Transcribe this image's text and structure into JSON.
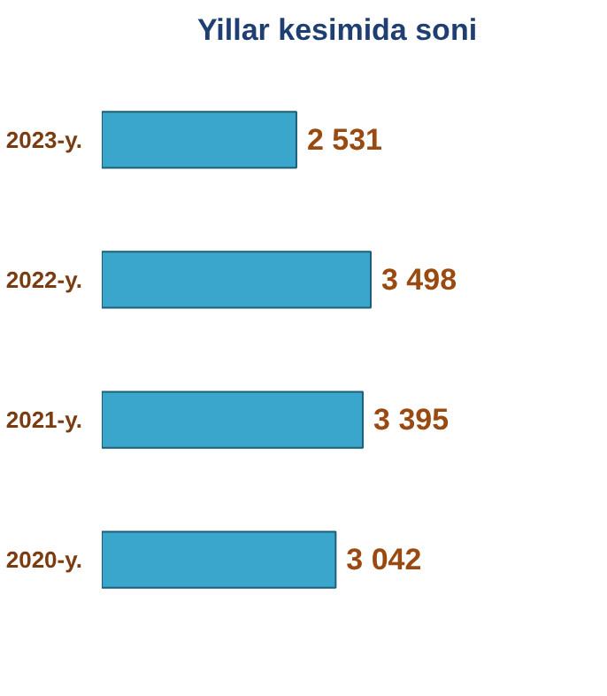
{
  "chart_data": {
    "type": "bar",
    "orientation": "horizontal",
    "title": "Yillar kesimida soni",
    "categories": [
      "2023-y.",
      "2022-y.",
      "2021-y.",
      "2020-y."
    ],
    "values": [
      2531,
      3498,
      3395,
      3042
    ],
    "value_labels": [
      "2 531",
      "3 498",
      "3 395",
      "3 042"
    ],
    "color": "#3aa6cc",
    "tick_labels": "y"
  }
}
